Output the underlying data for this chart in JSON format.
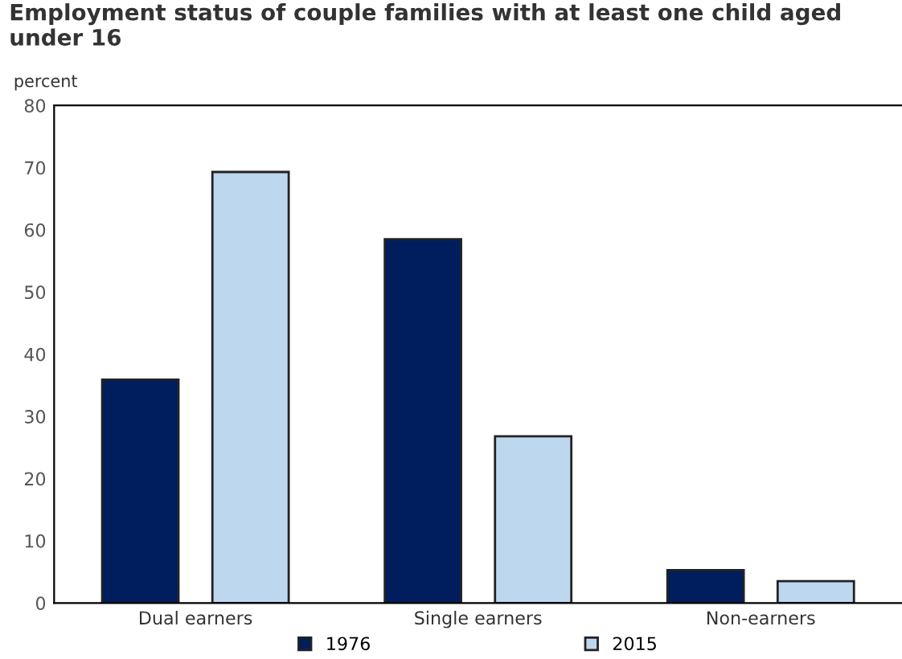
{
  "chart_data": {
    "type": "bar",
    "title": "Employment status of couple families with at least one child aged under 16",
    "ylabel": "percent",
    "categories": [
      "Dual earners",
      "Single earners",
      "Non-earners"
    ],
    "series": [
      {
        "name": "1976",
        "color": "#001e5e",
        "values": [
          35.9,
          58.5,
          5.3
        ]
      },
      {
        "name": "2015",
        "color": "#bdd7ee",
        "values": [
          69.3,
          26.8,
          3.5
        ]
      }
    ],
    "ylim": [
      0,
      80
    ],
    "yticks": [
      0,
      10,
      20,
      30,
      40,
      50,
      60,
      70,
      80
    ],
    "grid": false,
    "legend": "bottom"
  }
}
